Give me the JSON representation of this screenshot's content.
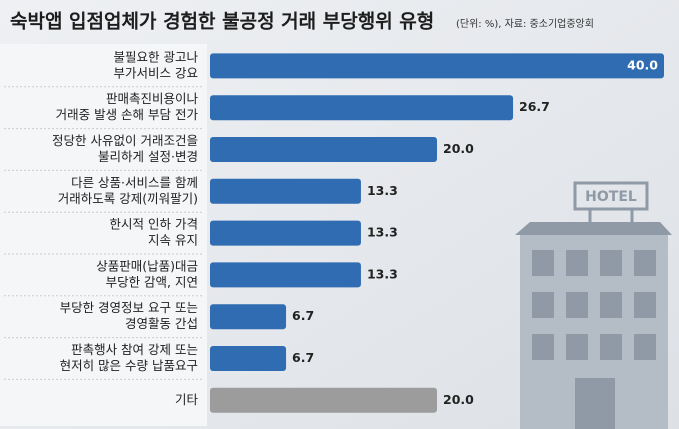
{
  "chart_data": {
    "type": "bar",
    "orientation": "horizontal",
    "title": "숙박앱 입점업체가 경험한 불공정 거래 부당행위 유형",
    "subtitle": "(단위: %), 자료: 중소기업중앙회",
    "categories": [
      [
        "불필요한 광고나",
        "부가서비스 강요"
      ],
      [
        "판매촉진비용이나",
        "거래중 발생 손해 부담 전가"
      ],
      [
        "정당한 사유없이 거래조건을",
        "불리하게 설정·변경"
      ],
      [
        "다른 상품·서비스를 함께",
        "거래하도록 강제(끼워팔기)"
      ],
      [
        "한시적 인하 가격",
        "지속 유지"
      ],
      [
        "상품판매(납품)대금",
        "부당한 감액, 지연"
      ],
      [
        "부당한 경영정보 요구 또는",
        "경영활동 간섭"
      ],
      [
        "판촉행사 참여 강제 또는",
        "현저히 많은 수량 납품요구"
      ],
      [
        "기타"
      ]
    ],
    "values": [
      40.0,
      26.7,
      20.0,
      13.3,
      13.3,
      13.3,
      6.7,
      6.7,
      20.0
    ],
    "value_labels": [
      "40.0",
      "26.7",
      "20.0",
      "13.3",
      "13.3",
      "13.3",
      "6.7",
      "6.7",
      "20.0"
    ],
    "colors": [
      "#2f6cb2",
      "#2f6cb2",
      "#2f6cb2",
      "#2f6cb2",
      "#2f6cb2",
      "#2f6cb2",
      "#2f6cb2",
      "#2f6cb2",
      "#9c9c9c"
    ],
    "illustration_text": "HOTEL"
  }
}
